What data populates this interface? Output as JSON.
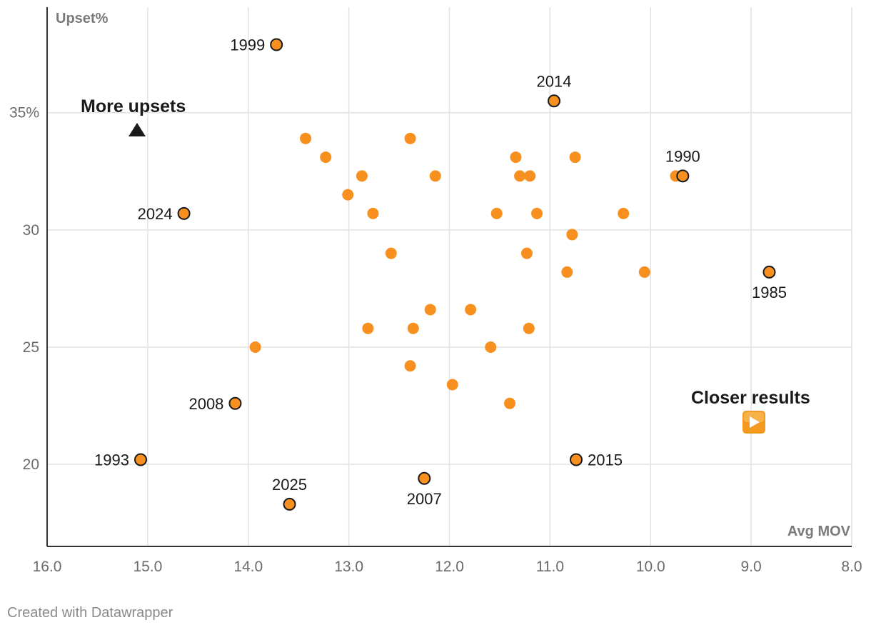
{
  "chart_data": {
    "type": "scatter",
    "xlabel": "Avg MOV",
    "ylabel": "Upset%",
    "xlim": [
      16.0,
      8.0
    ],
    "ylim": [
      16.5,
      39.5
    ],
    "x_reversed": true,
    "x_ticks": [
      "16.0",
      "15.0",
      "14.0",
      "13.0",
      "12.0",
      "11.0",
      "10.0",
      "9.0",
      "8.0"
    ],
    "y_ticks": [
      {
        "value": 20,
        "label": "20"
      },
      {
        "value": 25,
        "label": "25"
      },
      {
        "value": 30,
        "label": "30"
      },
      {
        "value": 35,
        "label": "35%"
      }
    ],
    "grid": true,
    "colors": {
      "point": "#f7901e",
      "outline": "#1a1a1a",
      "grid": "#e2e2e2",
      "axis": "#333333"
    },
    "highlighted": [
      {
        "label": "1999",
        "x": 13.72,
        "y": 37.9
      },
      {
        "label": "2014",
        "x": 10.96,
        "y": 35.5
      },
      {
        "label": "1990",
        "x": 9.68,
        "y": 32.3
      },
      {
        "label": "2024",
        "x": 14.64,
        "y": 30.7
      },
      {
        "label": "1985",
        "x": 8.82,
        "y": 28.2
      },
      {
        "label": "2008",
        "x": 14.13,
        "y": 22.6
      },
      {
        "label": "1993",
        "x": 15.07,
        "y": 20.2
      },
      {
        "label": "2015",
        "x": 10.74,
        "y": 20.2
      },
      {
        "label": "2007",
        "x": 12.25,
        "y": 19.4
      },
      {
        "label": "2025",
        "x": 13.59,
        "y": 18.3
      }
    ],
    "points": [
      {
        "x": 13.43,
        "y": 33.9
      },
      {
        "x": 13.23,
        "y": 33.1
      },
      {
        "x": 12.87,
        "y": 32.3
      },
      {
        "x": 13.01,
        "y": 31.5
      },
      {
        "x": 12.76,
        "y": 30.7
      },
      {
        "x": 12.58,
        "y": 29.0
      },
      {
        "x": 12.39,
        "y": 33.9
      },
      {
        "x": 12.14,
        "y": 32.3
      },
      {
        "x": 11.53,
        "y": 30.7
      },
      {
        "x": 11.34,
        "y": 33.1
      },
      {
        "x": 11.3,
        "y": 32.3
      },
      {
        "x": 11.2,
        "y": 32.3
      },
      {
        "x": 11.13,
        "y": 30.7
      },
      {
        "x": 10.75,
        "y": 33.1
      },
      {
        "x": 10.78,
        "y": 29.8
      },
      {
        "x": 11.23,
        "y": 29.0
      },
      {
        "x": 10.83,
        "y": 28.2
      },
      {
        "x": 10.27,
        "y": 30.7
      },
      {
        "x": 10.06,
        "y": 28.2
      },
      {
        "x": 9.75,
        "y": 32.3
      },
      {
        "x": 12.19,
        "y": 26.6
      },
      {
        "x": 11.79,
        "y": 26.6
      },
      {
        "x": 12.81,
        "y": 25.8
      },
      {
        "x": 12.36,
        "y": 25.8
      },
      {
        "x": 11.21,
        "y": 25.8
      },
      {
        "x": 13.93,
        "y": 25.0
      },
      {
        "x": 11.59,
        "y": 25.0
      },
      {
        "x": 12.39,
        "y": 24.2
      },
      {
        "x": 11.97,
        "y": 23.4
      },
      {
        "x": 11.4,
        "y": 22.6
      }
    ],
    "annotations": [
      {
        "text": "More upsets",
        "icon": "up-triangle-icon"
      },
      {
        "text": "Closer results",
        "icon": "play-button-icon"
      }
    ]
  },
  "footer": {
    "credit": "Created with Datawrapper"
  }
}
